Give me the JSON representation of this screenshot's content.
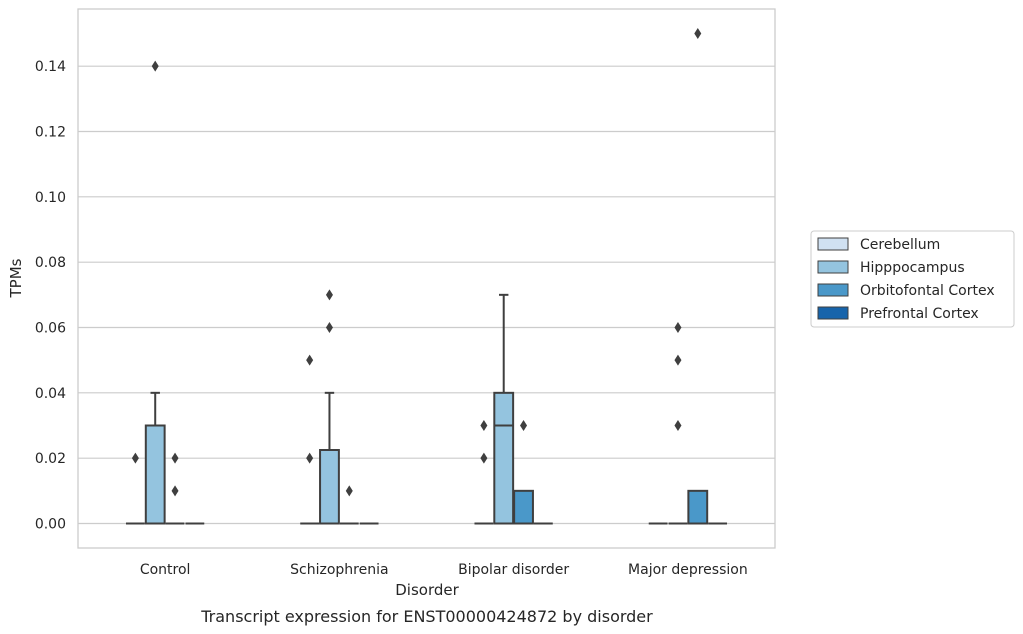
{
  "chart_data": {
    "type": "box",
    "caption": "Transcript expression for ENST00000424872 by disorder",
    "xlabel": "Disorder",
    "ylabel": "TPMs",
    "ylim": [
      -0.0075,
      0.1575
    ],
    "yticks": [
      0.0,
      0.02,
      0.04,
      0.06,
      0.08,
      0.1,
      0.12,
      0.14
    ],
    "ytick_labels": [
      "0.00",
      "0.02",
      "0.04",
      "0.06",
      "0.08",
      "0.10",
      "0.12",
      "0.14"
    ],
    "grid": "horizontal",
    "legend_position": "right",
    "categories": [
      "Control",
      "Schizophrenia",
      "Bipolar disorder",
      "Major depression"
    ],
    "series": [
      {
        "name": "Cerebellum",
        "color": "#d0e1f2",
        "boxes": [
          {
            "q1": 0,
            "median": 0,
            "q3": 0,
            "whisker_low": 0,
            "whisker_high": 0,
            "outliers": [
              0.02
            ]
          },
          {
            "q1": 0,
            "median": 0,
            "q3": 0,
            "whisker_low": 0,
            "whisker_high": 0,
            "outliers": [
              0.02,
              0.05
            ]
          },
          {
            "q1": 0,
            "median": 0,
            "q3": 0,
            "whisker_low": 0,
            "whisker_high": 0,
            "outliers": [
              0.02,
              0.03
            ]
          },
          {
            "q1": 0,
            "median": 0,
            "q3": 0,
            "whisker_low": 0,
            "whisker_high": 0,
            "outliers": []
          }
        ]
      },
      {
        "name": "Hipppocampus",
        "color": "#94c4df",
        "boxes": [
          {
            "q1": 0,
            "median": 0,
            "q3": 0.03,
            "whisker_low": 0,
            "whisker_high": 0.04,
            "outliers": [
              0.14
            ]
          },
          {
            "q1": 0,
            "median": 0,
            "q3": 0.0225,
            "whisker_low": 0,
            "whisker_high": 0.04,
            "outliers": [
              0.06,
              0.07
            ]
          },
          {
            "q1": 0,
            "median": 0.03,
            "q3": 0.04,
            "whisker_low": 0,
            "whisker_high": 0.07,
            "outliers": []
          },
          {
            "q1": 0,
            "median": 0,
            "q3": 0,
            "whisker_low": 0,
            "whisker_high": 0,
            "outliers": [
              0.03,
              0.05,
              0.06
            ]
          }
        ]
      },
      {
        "name": "Orbitofontal Cortex",
        "color": "#4a98c9",
        "boxes": [
          {
            "q1": 0,
            "median": 0,
            "q3": 0,
            "whisker_low": 0,
            "whisker_high": 0,
            "outliers": [
              0.01,
              0.02
            ]
          },
          {
            "q1": 0,
            "median": 0,
            "q3": 0,
            "whisker_low": 0,
            "whisker_high": 0,
            "outliers": [
              0.01
            ]
          },
          {
            "q1": 0,
            "median": 0,
            "q3": 0.01,
            "whisker_low": 0,
            "whisker_high": 0.01,
            "outliers": [
              0.03
            ]
          },
          {
            "q1": 0,
            "median": 0,
            "q3": 0.01,
            "whisker_low": 0,
            "whisker_high": 0.01,
            "outliers": [
              0.15
            ]
          }
        ]
      },
      {
        "name": "Prefrontal Cortex",
        "color": "#1764ab",
        "boxes": [
          {
            "q1": 0,
            "median": 0,
            "q3": 0,
            "whisker_low": 0,
            "whisker_high": 0,
            "outliers": []
          },
          {
            "q1": 0,
            "median": 0,
            "q3": 0,
            "whisker_low": 0,
            "whisker_high": 0,
            "outliers": []
          },
          {
            "q1": 0,
            "median": 0,
            "q3": 0,
            "whisker_low": 0,
            "whisker_high": 0,
            "outliers": []
          },
          {
            "q1": 0,
            "median": 0,
            "q3": 0,
            "whisker_low": 0,
            "whisker_high": 0,
            "outliers": []
          }
        ]
      }
    ]
  }
}
